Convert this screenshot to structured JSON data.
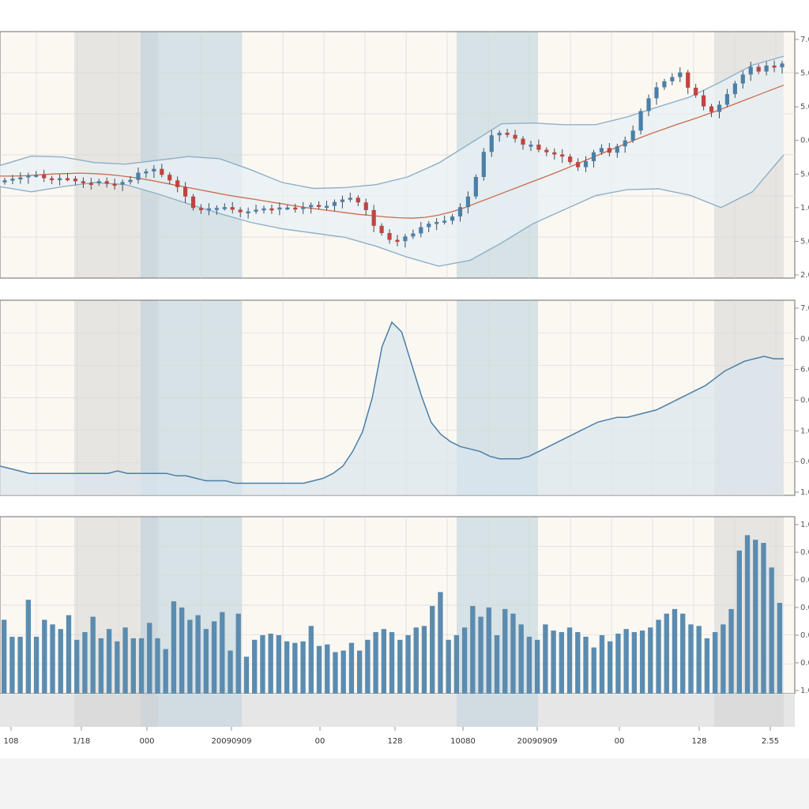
{
  "chart_data": [
    {
      "panel": "price",
      "type": "candlestick",
      "index": [
        0,
        1,
        2,
        3,
        4,
        5,
        6,
        7,
        8,
        9,
        10,
        11,
        12,
        13,
        14,
        15,
        16,
        17,
        18,
        19,
        20,
        21,
        22,
        23,
        24,
        25,
        26,
        27,
        28,
        29,
        30,
        31,
        32,
        33,
        34,
        35,
        36,
        37,
        38,
        39,
        40,
        41,
        42,
        43,
        44,
        45,
        46,
        47,
        48,
        49,
        50,
        51,
        52,
        53,
        54,
        55,
        56,
        57,
        58,
        59,
        60,
        61,
        62,
        63,
        64,
        65,
        66,
        67,
        68,
        69,
        70,
        71,
        72,
        73,
        74,
        75,
        76,
        77,
        78,
        79,
        80,
        81,
        82,
        83,
        84,
        85,
        86,
        87,
        88,
        89,
        90,
        91,
        92,
        93,
        94,
        95,
        96,
        97,
        98,
        99
      ],
      "close": [
        51.0,
        51.4,
        51.7,
        52.2,
        52.3,
        51.5,
        51.3,
        51.5,
        51.4,
        50.8,
        50.4,
        50.3,
        50.8,
        50.2,
        50.0,
        50.6,
        51.1,
        52.8,
        53.1,
        53.7,
        52.3,
        51.0,
        49.4,
        47.2,
        44.5,
        44.0,
        44.4,
        44.5,
        44.7,
        44.1,
        43.5,
        43.7,
        44.1,
        44.4,
        44.3,
        44.6,
        44.6,
        44.3,
        44.7,
        45.2,
        44.8,
        45.0,
        45.9,
        46.5,
        46.9,
        45.8,
        44.0,
        40.3,
        38.6,
        37.0,
        36.7,
        37.8,
        38.5,
        40.0,
        40.8,
        41.2,
        41.5,
        42.5,
        44.7,
        47.2,
        51.8,
        57.7,
        61.6,
        62.2,
        61.7,
        60.8,
        59.4,
        59.4,
        58.2,
        57.6,
        57.1,
        56.6,
        55.3,
        54.1,
        55.5,
        57.6,
        58.6,
        57.5,
        59.0,
        60.4,
        62.7,
        67.3,
        70.3,
        72.9,
        74.3,
        75.3,
        76.4,
        72.8,
        71.0,
        68.4,
        67.1,
        68.8,
        71.3,
        73.8,
        75.9,
        77.7,
        76.6,
        78.0,
        77.6,
        78.5
      ],
      "sma": [
        52,
        52,
        52.1,
        52.3,
        52.5,
        52.6,
        52.7,
        52.6,
        52.4,
        52.1,
        51.7,
        51.2,
        50.6,
        50.0,
        49.4,
        48.8,
        48.2,
        47.6,
        47.1,
        46.6,
        46.1,
        45.6,
        45.1,
        44.6,
        44.2,
        43.8,
        43.4,
        43.0,
        42.7,
        42.4,
        42.2,
        42.1,
        42.3,
        42.8,
        43.6,
        44.6,
        45.8,
        47.0,
        48.2,
        49.4,
        50.6,
        51.8,
        53.0,
        54.3,
        55.6,
        56.9,
        58.2,
        59.5,
        60.8,
        62.0,
        63.1,
        64.2,
        65.2,
        66.3,
        67.4,
        68.6,
        69.8,
        71.0,
        72.2,
        73.4
      ],
      "bollinger_upper": [
        54.5,
        56.7,
        56.5,
        55.2,
        54.8,
        55.7,
        56.6,
        56.1,
        53.5,
        50.5,
        49.1,
        49.3,
        50.0,
        51.8,
        55.1,
        59.7,
        64.3,
        64.5,
        64.1,
        64.1,
        65.9,
        68.3,
        70.6,
        74.2,
        78.1,
        80.2
      ],
      "bollinger_lower": [
        49.5,
        48.3,
        49.5,
        50.5,
        50.0,
        47.9,
        45.5,
        43.2,
        41.1,
        39.6,
        38.6,
        37.6,
        35.5,
        32.9,
        30.8,
        32.2,
        36.3,
        40.8,
        44.1,
        47.4,
        48.8,
        49.0,
        47.5,
        44.6,
        48.3,
        57.0
      ],
      "ylim": [
        28,
        86
      ]
    },
    {
      "panel": "volatility",
      "type": "area",
      "values": [
        27,
        26,
        25,
        24,
        24,
        24,
        24,
        24,
        24,
        24,
        24,
        24,
        25,
        24,
        24,
        24,
        24,
        24,
        23,
        23,
        22,
        21,
        21,
        21,
        20,
        20,
        20,
        20,
        20,
        20,
        20,
        20,
        21,
        22,
        24,
        27,
        33,
        41,
        55,
        76,
        86,
        82,
        69,
        56,
        45,
        40,
        37,
        35,
        34,
        33,
        31,
        30,
        30,
        30,
        31,
        33,
        35,
        37,
        39,
        41,
        43,
        45,
        46,
        47,
        47,
        48,
        49,
        50,
        52,
        54,
        56,
        58,
        60,
        63,
        66,
        68,
        70,
        71,
        72,
        71,
        71
      ],
      "ylim": [
        15,
        95
      ]
    },
    {
      "panel": "volume",
      "type": "bar",
      "values": [
        48,
        37,
        37,
        61,
        37,
        48,
        45,
        42,
        51,
        35,
        40,
        50,
        36,
        42,
        34,
        43,
        36,
        36,
        46,
        36,
        29,
        60,
        56,
        48,
        51,
        42,
        47,
        53,
        28,
        52,
        24,
        35,
        38,
        39,
        38,
        34,
        33,
        34,
        44,
        31,
        32,
        27,
        28,
        33,
        28,
        35,
        40,
        42,
        40,
        35,
        38,
        43,
        44,
        57,
        66,
        35,
        38,
        43,
        57,
        50,
        56,
        38,
        55,
        52,
        45,
        37,
        35,
        45,
        41,
        40,
        43,
        40,
        37,
        30,
        38,
        34,
        39,
        42,
        40,
        41,
        43,
        48,
        52,
        55,
        52,
        45,
        44,
        36,
        40,
        45,
        55,
        93,
        103,
        100,
        98,
        82,
        59
      ],
      "ylim": [
        0,
        115
      ]
    }
  ],
  "x_tick_labels": [
    "108",
    "1/18",
    "000",
    "20090909",
    "00",
    "128",
    "10080",
    "20090909",
    "00",
    "128",
    "2.55"
  ],
  "right_ticks": {
    "price": [
      "7.0",
      "5.0",
      "5.0",
      "0.0",
      "5.0",
      "1.0",
      "5.0",
      "2.0"
    ],
    "volatility": [
      "7.0",
      "0.0",
      "6.0",
      "0.0",
      "1.0",
      "0.0",
      "1.0"
    ],
    "volume": [
      "1.0",
      "0.0",
      "0.0",
      "0.0",
      "0.0",
      "0.0",
      "1.0"
    ]
  },
  "colors": {
    "up": "#4b7fa7",
    "down": "#c0443f",
    "sma": "#c96c4f",
    "band": "#8fb0c8",
    "band_fill": "#e8f0f4",
    "plot_bg": "#fbf8f2",
    "shade_blue": "#b8cfdd",
    "shade_gray": "#d6d6d6",
    "volume": "#5b8cb0",
    "volatility_line": "#4b7fa7"
  }
}
